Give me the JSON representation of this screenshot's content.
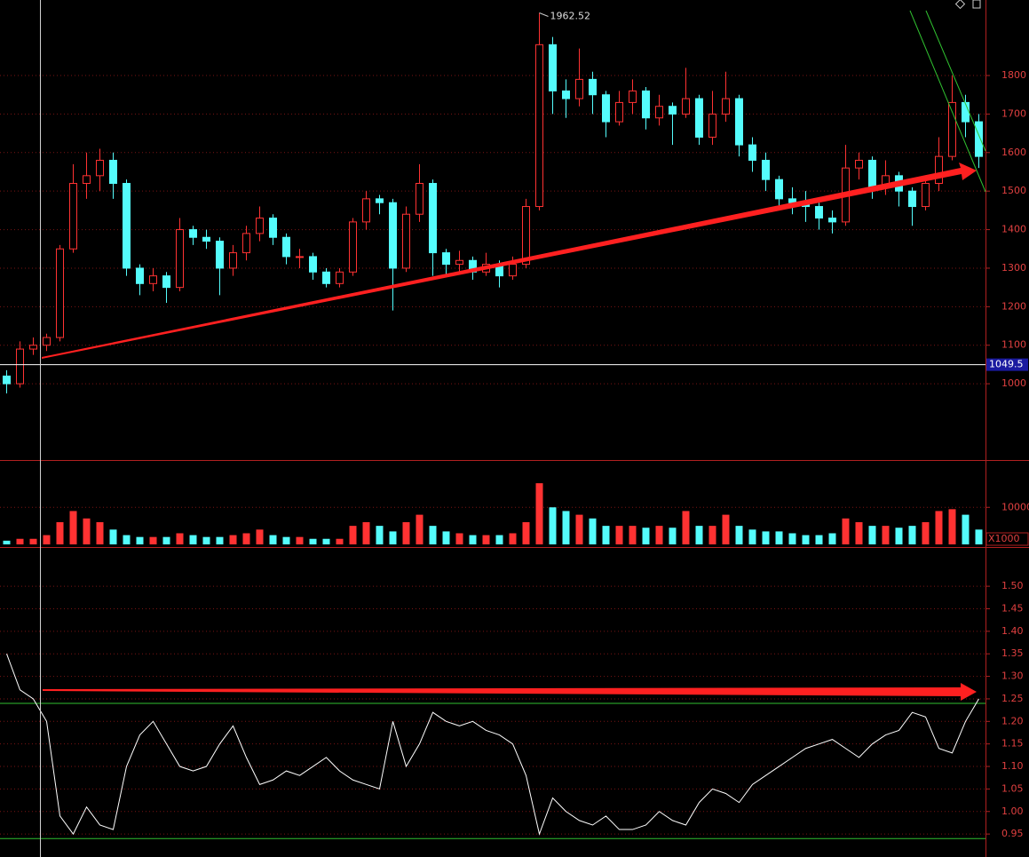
{
  "chart_data": [
    {
      "type": "candlestick",
      "open": [
        1020,
        1000,
        1090,
        1100,
        1120,
        1350,
        1520,
        1540,
        1580,
        1520,
        1300,
        1260,
        1280,
        1250,
        1400,
        1380,
        1370,
        1300,
        1340,
        1390,
        1430,
        1380,
        1330,
        1330,
        1290,
        1260,
        1290,
        1420,
        1480,
        1470,
        1300,
        1440,
        1520,
        1340,
        1310,
        1320,
        1290,
        1310,
        1280,
        1310,
        1460,
        1880,
        1760,
        1740,
        1790,
        1750,
        1680,
        1730,
        1760,
        1690,
        1720,
        1700,
        1740,
        1640,
        1700,
        1740,
        1620,
        1580,
        1530,
        1480,
        1470,
        1460,
        1430,
        1420,
        1560,
        1580,
        1510,
        1540,
        1500,
        1460,
        1520,
        1590,
        1730,
        1680
      ],
      "high": [
        1035,
        1110,
        1120,
        1130,
        1360,
        1570,
        1600,
        1610,
        1600,
        1530,
        1310,
        1300,
        1290,
        1430,
        1410,
        1400,
        1380,
        1360,
        1410,
        1460,
        1440,
        1390,
        1350,
        1340,
        1300,
        1300,
        1430,
        1500,
        1490,
        1480,
        1460,
        1570,
        1530,
        1350,
        1345,
        1330,
        1340,
        1320,
        1330,
        1480,
        1962.52,
        1900,
        1790,
        1870,
        1810,
        1760,
        1760,
        1790,
        1770,
        1750,
        1730,
        1820,
        1750,
        1760,
        1810,
        1750,
        1640,
        1600,
        1540,
        1510,
        1500,
        1470,
        1450,
        1620,
        1600,
        1590,
        1580,
        1550,
        1510,
        1540,
        1640,
        1800,
        1750,
        1700
      ],
      "low": [
        975,
        990,
        1075,
        1085,
        1110,
        1340,
        1480,
        1500,
        1480,
        1280,
        1230,
        1240,
        1210,
        1240,
        1360,
        1350,
        1230,
        1280,
        1320,
        1370,
        1360,
        1310,
        1300,
        1270,
        1250,
        1250,
        1280,
        1400,
        1440,
        1190,
        1290,
        1420,
        1280,
        1280,
        1290,
        1270,
        1280,
        1250,
        1270,
        1300,
        1450,
        1700,
        1690,
        1720,
        1700,
        1640,
        1670,
        1700,
        1660,
        1670,
        1620,
        1690,
        1620,
        1620,
        1680,
        1590,
        1550,
        1500,
        1450,
        1440,
        1420,
        1400,
        1390,
        1410,
        1530,
        1480,
        1490,
        1460,
        1410,
        1450,
        1500,
        1580,
        1640,
        1560
      ],
      "close": [
        1000,
        1090,
        1100,
        1120,
        1350,
        1520,
        1540,
        1580,
        1520,
        1300,
        1260,
        1280,
        1250,
        1400,
        1380,
        1370,
        1300,
        1340,
        1390,
        1430,
        1380,
        1330,
        1330,
        1290,
        1260,
        1290,
        1420,
        1480,
        1470,
        1300,
        1440,
        1520,
        1340,
        1310,
        1320,
        1290,
        1310,
        1280,
        1310,
        1460,
        1880,
        1760,
        1740,
        1790,
        1750,
        1680,
        1730,
        1760,
        1690,
        1720,
        1700,
        1740,
        1640,
        1700,
        1740,
        1620,
        1580,
        1530,
        1480,
        1470,
        1460,
        1430,
        1420,
        1560,
        1580,
        1510,
        1540,
        1500,
        1460,
        1520,
        1590,
        1730,
        1680,
        1590
      ],
      "up_color": "#ff3232",
      "down_color": "#54fcfc",
      "ylim": [
        802,
        1996
      ],
      "yticks": [
        1000,
        1100,
        1200,
        1300,
        1400,
        1500,
        1600,
        1700,
        1800
      ],
      "grid": true,
      "hline": {
        "value": 1049.5,
        "color": "#ffffff"
      }
    },
    {
      "type": "bar",
      "values": [
        1000,
        1500,
        1500,
        2500,
        6000,
        9000,
        7000,
        6000,
        4000,
        2500,
        2000,
        2000,
        2000,
        3000,
        2500,
        2000,
        2000,
        2500,
        3000,
        4000,
        2500,
        2000,
        2000,
        1500,
        1500,
        1500,
        5000,
        6000,
        5000,
        3500,
        6000,
        8000,
        5000,
        3500,
        3000,
        2500,
        2500,
        2500,
        3000,
        6000,
        16500,
        10000,
        9000,
        8000,
        7000,
        5000,
        5000,
        5000,
        4500,
        5000,
        4500,
        9000,
        5000,
        5000,
        8000,
        5000,
        4000,
        3500,
        3500,
        3000,
        2500,
        2500,
        3000,
        7000,
        6000,
        5000,
        5000,
        4500,
        5000,
        6000,
        9000,
        9500,
        8000,
        4000
      ],
      "ylim": [
        0,
        21800
      ],
      "yticks": [
        10000
      ],
      "grid": true,
      "unit_label": "X1000"
    },
    {
      "type": "line",
      "values": [
        1.35,
        1.27,
        1.25,
        1.2,
        0.99,
        0.95,
        1.01,
        0.97,
        0.96,
        1.1,
        1.17,
        1.2,
        1.15,
        1.1,
        1.09,
        1.1,
        1.15,
        1.19,
        1.12,
        1.06,
        1.07,
        1.09,
        1.08,
        1.1,
        1.12,
        1.09,
        1.07,
        1.06,
        1.05,
        1.2,
        1.1,
        1.15,
        1.22,
        1.2,
        1.19,
        1.2,
        1.18,
        1.17,
        1.15,
        1.08,
        0.95,
        1.03,
        1.0,
        0.98,
        0.97,
        0.99,
        0.96,
        0.96,
        0.97,
        1.0,
        0.98,
        0.97,
        1.02,
        1.05,
        1.04,
        1.02,
        1.06,
        1.08,
        1.1,
        1.12,
        1.14,
        1.15,
        1.16,
        1.14,
        1.12,
        1.15,
        1.17,
        1.18,
        1.22,
        1.21,
        1.14,
        1.13,
        1.2,
        1.25
      ],
      "color": "#ffffff",
      "ylim": [
        0.899,
        1.585
      ],
      "yticks": [
        0.95,
        {
          "value": 1.0,
          "label": "1.00"
        },
        1.05,
        {
          "value": 1.1,
          "label": "1.10"
        },
        1.15,
        {
          "value": 1.2,
          "label": "1.20"
        },
        1.25,
        {
          "value": 1.3,
          "label": "1.30"
        },
        1.35,
        {
          "value": 1.4,
          "label": "1.40"
        },
        1.45,
        {
          "value": 1.5,
          "label": "1.50"
        }
      ],
      "grid": true,
      "hlines": [
        {
          "value": 1.24,
          "color": "#30c030"
        },
        {
          "value": 0.94,
          "color": "#30c030"
        }
      ]
    }
  ]
}
